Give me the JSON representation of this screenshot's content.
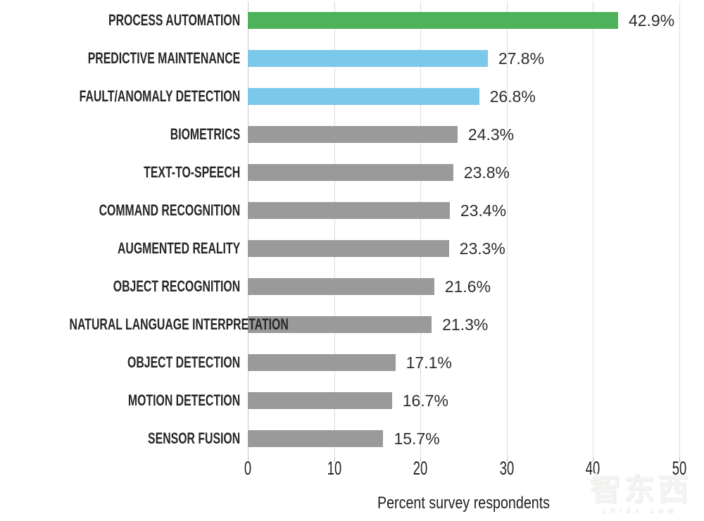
{
  "chart_data": {
    "type": "bar",
    "orientation": "horizontal",
    "title": "",
    "xlabel": "Percent survey respondents",
    "ylabel": "",
    "xlim": [
      0,
      50
    ],
    "x_ticks": [
      0,
      10,
      20,
      30,
      40,
      50
    ],
    "grid": "vertical-lines-on",
    "legend": "none",
    "categories": [
      "PROCESS AUTOMATION",
      "PREDICTIVE MAINTENANCE",
      "FAULT/ANOMALY DETECTION",
      "BIOMETRICS",
      "TEXT-TO-SPEECH",
      "COMMAND RECOGNITION",
      "AUGMENTED REALITY",
      "OBJECT RECOGNITION",
      "NATURAL LANGUAGE INTERPRETATION",
      "OBJECT DETECTION",
      "MOTION DETECTION",
      "SENSOR FUSION"
    ],
    "values": [
      42.9,
      27.8,
      26.8,
      24.3,
      23.8,
      23.4,
      23.3,
      21.6,
      21.3,
      17.1,
      16.7,
      15.7
    ],
    "value_labels": [
      "42.9%",
      "27.8%",
      "26.8%",
      "24.3%",
      "23.8%",
      "23.4%",
      "23.3%",
      "21.6%",
      "21.3%",
      "17.1%",
      "16.7%",
      "15.7%"
    ],
    "bar_colors": [
      "#4eb25b",
      "#7bc9ea",
      "#7bc9ea",
      "#9a9a9a",
      "#9a9a9a",
      "#9a9a9a",
      "#9a9a9a",
      "#9a9a9a",
      "#9a9a9a",
      "#9a9a9a",
      "#9a9a9a",
      "#9a9a9a"
    ],
    "accent_colors": {
      "highlight_green": "#4eb25b",
      "secondary_blue": "#7bc9ea",
      "default_gray": "#9a9a9a",
      "gridline": "#dcdcdc"
    }
  },
  "watermark": {
    "logo": "智东西",
    "domain": "zhidx.com"
  }
}
